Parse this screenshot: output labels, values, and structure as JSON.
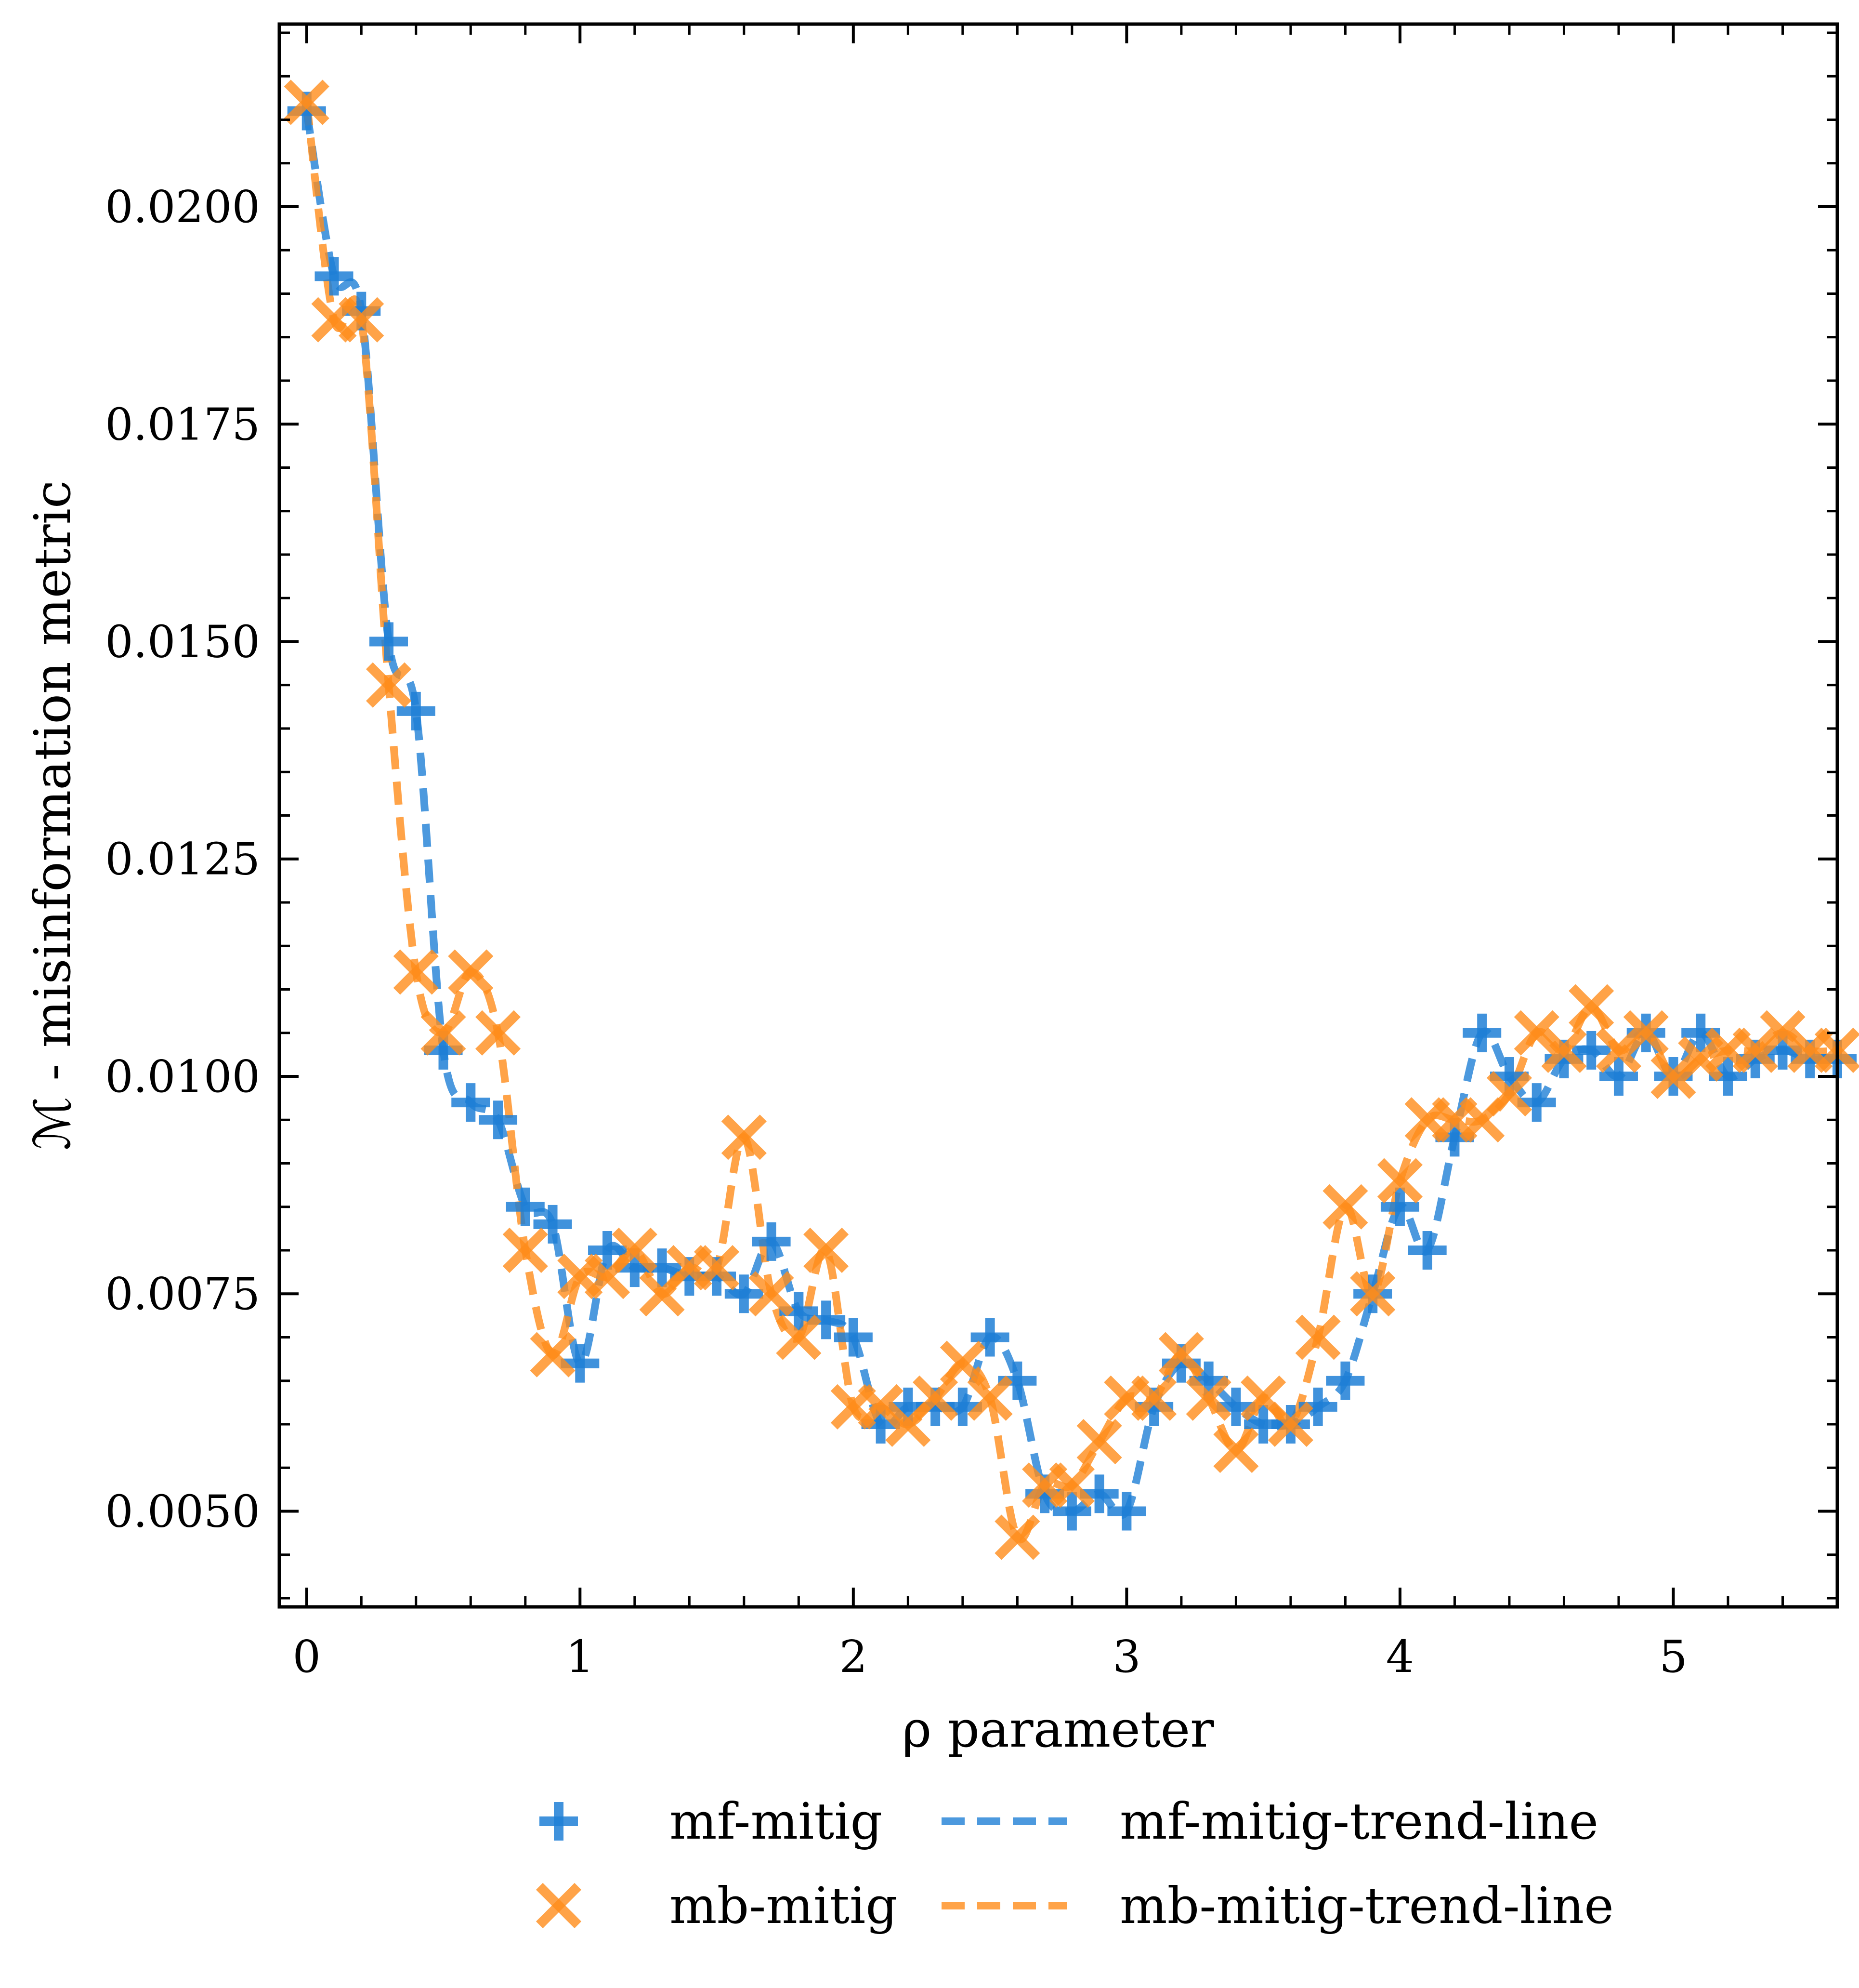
{
  "chart_data": {
    "type": "scatter",
    "xlabel": "ρ parameter",
    "ylabel": "ℳ - misinformation metric",
    "xlim": [
      -0.1,
      5.6
    ],
    "ylim": [
      0.0039,
      0.0221
    ],
    "x_ticks": [
      0,
      1,
      2,
      3,
      4,
      5
    ],
    "x_tick_labels": [
      "0",
      "1",
      "2",
      "3",
      "4",
      "5"
    ],
    "y_ticks": [
      0.005,
      0.0075,
      0.01,
      0.0125,
      0.015,
      0.0175,
      0.02
    ],
    "y_tick_labels": [
      "0.0050",
      "0.0075",
      "0.0100",
      "0.0125",
      "0.0150",
      "0.0175",
      "0.0200"
    ],
    "grid": false,
    "legend_position": "bottom",
    "colors": {
      "mf": "#1f7fd6",
      "mb": "#ff8c1a"
    },
    "x": [
      0.0,
      0.1,
      0.2,
      0.3,
      0.4,
      0.5,
      0.6,
      0.7,
      0.8,
      0.9,
      1.0,
      1.1,
      1.2,
      1.3,
      1.4,
      1.5,
      1.6,
      1.7,
      1.8,
      1.9,
      2.0,
      2.1,
      2.2,
      2.3,
      2.4,
      2.5,
      2.6,
      2.7,
      2.8,
      2.9,
      3.0,
      3.1,
      3.2,
      3.3,
      3.4,
      3.5,
      3.6,
      3.7,
      3.8,
      3.9,
      4.0,
      4.1,
      4.2,
      4.3,
      4.4,
      4.5,
      4.6,
      4.7,
      4.8,
      4.9,
      5.0,
      5.1,
      5.2,
      5.3,
      5.4,
      5.5,
      5.6
    ],
    "series": [
      {
        "name": "mf-mitig",
        "marker": "plus",
        "values": [
          0.0211,
          0.0192,
          0.0188,
          0.015,
          0.0142,
          0.0103,
          0.0097,
          0.0095,
          0.0085,
          0.0083,
          0.0067,
          0.008,
          0.0078,
          0.0078,
          0.0077,
          0.0077,
          0.0075,
          0.0081,
          0.0073,
          0.0072,
          0.007,
          0.006,
          0.0062,
          0.0062,
          0.0062,
          0.007,
          0.0065,
          0.0052,
          0.005,
          0.0052,
          0.005,
          0.0062,
          0.0067,
          0.0065,
          0.0062,
          0.006,
          0.006,
          0.0062,
          0.0065,
          0.0075,
          0.0085,
          0.008,
          0.0093,
          0.0105,
          0.01,
          0.0097,
          0.0102,
          0.0103,
          0.01,
          0.0105,
          0.01,
          0.0105,
          0.01,
          0.0102,
          0.0103,
          0.0102,
          0.0102
        ]
      },
      {
        "name": "mb-mitig",
        "marker": "x",
        "values": [
          0.0212,
          0.0187,
          0.0187,
          0.0145,
          0.0112,
          0.0105,
          0.0112,
          0.0105,
          0.008,
          0.0068,
          0.0077,
          0.0077,
          0.008,
          0.0075,
          0.0078,
          0.0078,
          0.0093,
          0.0075,
          0.007,
          0.008,
          0.0062,
          0.0062,
          0.006,
          0.0063,
          0.0067,
          0.0063,
          0.0047,
          0.0053,
          0.0053,
          0.0058,
          0.0063,
          0.0063,
          0.0068,
          0.0063,
          0.0057,
          0.0063,
          0.006,
          0.007,
          0.0085,
          0.0075,
          0.0088,
          0.0095,
          0.0095,
          0.0095,
          0.0098,
          0.0105,
          0.0103,
          0.0108,
          0.0103,
          0.0105,
          0.01,
          0.0102,
          0.0103,
          0.0103,
          0.0105,
          0.0103,
          0.0103
        ]
      },
      {
        "name": "mf-mitig-trend-line",
        "style": "dashed",
        "of": "mf-mitig"
      },
      {
        "name": "mb-mitig-trend-line",
        "style": "dashed",
        "of": "mb-mitig"
      }
    ]
  }
}
